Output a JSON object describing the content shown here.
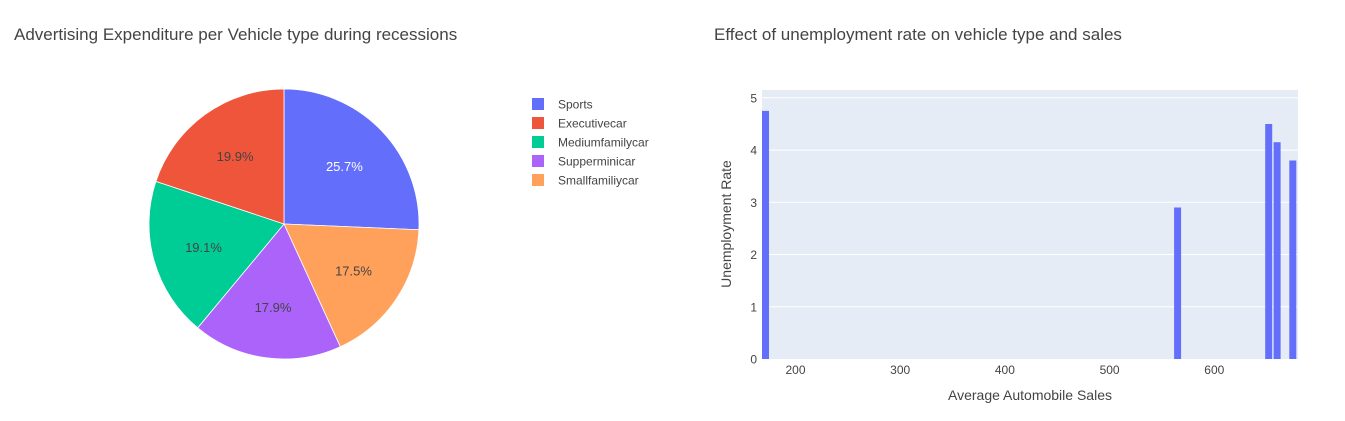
{
  "chart_data": [
    {
      "type": "pie",
      "title": "Advertising Expenditure per Vehicle type during recessions",
      "labels": [
        "Sports",
        "Executivecar",
        "Mediumfamilycar",
        "Supperminicar",
        "Smallfamiliycar"
      ],
      "values": [
        25.7,
        19.9,
        19.1,
        17.9,
        17.5
      ],
      "value_labels": [
        "25.7%",
        "19.9%",
        "19.1%",
        "17.9%",
        "17.5%"
      ],
      "colors": [
        "#636efa",
        "#EF553B",
        "#00cc96",
        "#ab63fa",
        "#FFA15A"
      ],
      "slice_order": [
        0,
        4,
        3,
        2,
        1
      ],
      "legend": "right"
    },
    {
      "type": "bar",
      "title": "Effect of unemployment rate on vehicle type and sales",
      "xlabel": "Average Automobile Sales",
      "ylabel": "Unemployment Rate",
      "x": [
        170,
        565,
        652,
        660,
        675
      ],
      "values": [
        4.75,
        2.9,
        4.5,
        4.15,
        3.8
      ],
      "xlim": [
        168,
        680
      ],
      "ylim": [
        0,
        5.15
      ],
      "xticks": [
        200,
        300,
        400,
        500,
        600
      ],
      "xtick_labels": [
        "200",
        "300",
        "400",
        "500",
        "600"
      ],
      "yticks": [
        0,
        1,
        2,
        3,
        4,
        5
      ],
      "ytick_labels": [
        "0",
        "1",
        "2",
        "3",
        "4",
        "5"
      ],
      "bar_width": 7,
      "color": "#636efa",
      "plot_bg": "#e5ecf6",
      "grid": true
    }
  ]
}
